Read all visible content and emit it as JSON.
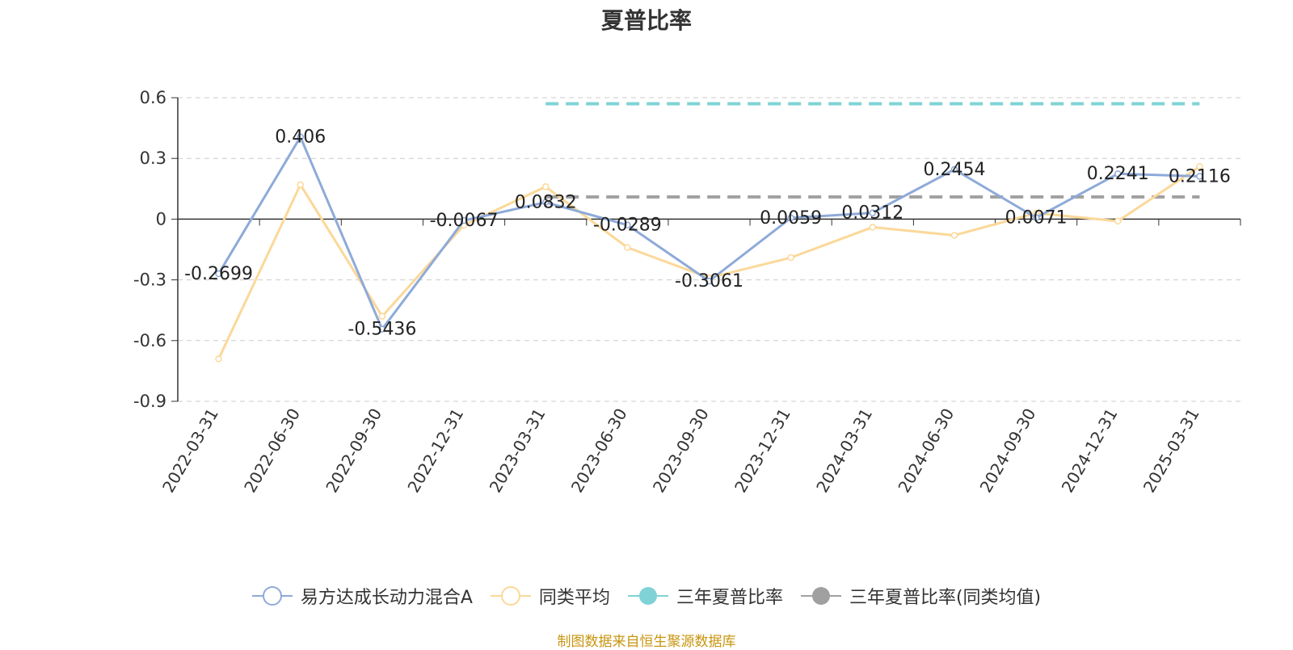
{
  "title": "夏普比率",
  "source": "制图数据来自恒生聚源数据库",
  "chart_data": {
    "type": "line",
    "title": "夏普比率",
    "categories": [
      "2022-03-31",
      "2022-06-30",
      "2022-09-30",
      "2022-12-31",
      "2023-03-31",
      "2023-06-30",
      "2023-09-30",
      "2023-12-31",
      "2024-03-31",
      "2024-06-30",
      "2024-09-30",
      "2024-12-31",
      "2025-03-31"
    ],
    "y_ticks": [
      "0.6",
      "0.3",
      "0",
      "-0.3",
      "-0.6",
      "-0.9"
    ],
    "ylim": [
      -0.9,
      0.6
    ],
    "grid": true,
    "legend_position": "bottom",
    "series": [
      {
        "name": "易方达成长动力混合A",
        "color": "#8eaad8",
        "values": [
          -0.2699,
          0.406,
          -0.5436,
          -0.0067,
          0.0832,
          -0.0289,
          -0.3061,
          0.0059,
          0.0312,
          0.2454,
          0.0071,
          0.2241,
          0.2116
        ],
        "labels": [
          "-0.2699",
          "0.406",
          "-0.5436",
          "-0.0067",
          "0.0832",
          "-0.0289",
          "-0.3061",
          "0.0059",
          "0.0312",
          "0.2454",
          "0.0071",
          "0.2241",
          "0.2116"
        ]
      },
      {
        "name": "同类平均",
        "color": "#fbd899",
        "values": [
          -0.69,
          0.17,
          -0.48,
          -0.03,
          0.16,
          -0.14,
          -0.29,
          -0.19,
          -0.04,
          -0.08,
          0.03,
          -0.01,
          0.26
        ]
      },
      {
        "name": "三年夏普比率",
        "color": "#7fd3d6",
        "reference": true,
        "value": 0.57,
        "from": "2023-03-31",
        "to": "2025-03-31"
      },
      {
        "name": "三年夏普比率(同类均值)",
        "color": "#a0a0a0",
        "reference": true,
        "value": 0.11,
        "from": "2023-03-31",
        "to": "2025-03-31"
      }
    ]
  }
}
